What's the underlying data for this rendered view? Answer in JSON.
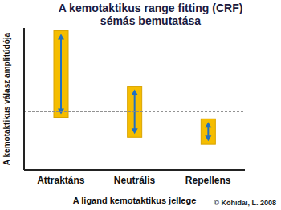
{
  "chart_data": {
    "type": "range_bar",
    "title": "A kemotaktikus range fitting (CRF) sémás bemutatása",
    "x_label": "A ligand kemotaktikus jellege",
    "y_label": "A kemotaktikus válasz amplitúdója",
    "categories": [
      "Attraktáns",
      "Neutrális",
      "Repellens"
    ],
    "values": [
      [
        37,
        98
      ],
      [
        23,
        59
      ],
      [
        18,
        36
      ]
    ],
    "color": "#f5bd00",
    "ylim": [
      0,
      100
    ],
    "tick_labels": "x",
    "reference_line": 41,
    "annotations": [
      "© Kőhidai, L. 2008"
    ]
  }
}
